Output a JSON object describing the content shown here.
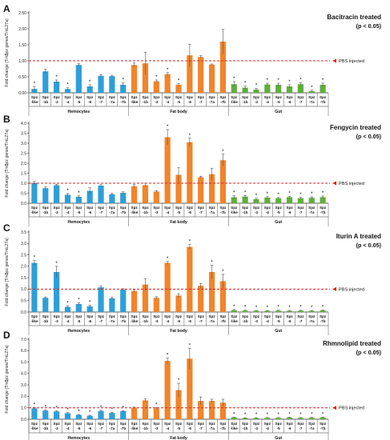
{
  "chart_data": [
    {
      "type": "bar",
      "panel_label": "A",
      "title": "Bacitracin treated",
      "subtitle": "(p < 0.05)",
      "ylabel": "Fold change (Tm$pz genes/TmL27a)",
      "ylim": [
        0,
        2.5
      ],
      "yticks": [
        "0.00",
        "0.50",
        "1.00",
        "1.50",
        "2.00",
        "2.50"
      ],
      "reference_label": "PBS injected",
      "reference_value": 1.0,
      "grid": false,
      "groups": [
        {
          "name": "Hemocytes",
          "color": "#2e9fd8",
          "categories": [
            "Spz -like",
            "Spz -1b",
            "Spz -3",
            "Spz -4",
            "Spz -5",
            "Spz -6",
            "Spz -7",
            "Spz -7a",
            "Spz -7b"
          ],
          "values": [
            0.12,
            0.67,
            0.35,
            0.12,
            0.87,
            0.2,
            0.53,
            0.52,
            0.25
          ],
          "errors": [
            0.08,
            0.07,
            0.05,
            0.04,
            0.04,
            0.05,
            0.04,
            0.03,
            0.06
          ],
          "significant": [
            true,
            false,
            true,
            true,
            false,
            true,
            false,
            false,
            true
          ]
        },
        {
          "name": "Fat body",
          "color": "#f2842a",
          "categories": [
            "Spz -like",
            "Spz -1b",
            "Spz -3",
            "Spz -4",
            "Spz -5",
            "Spz -6",
            "Spz -7",
            "Spz -7a",
            "Spz -7b"
          ],
          "values": [
            0.87,
            0.92,
            0.36,
            0.58,
            0.25,
            1.17,
            1.12,
            0.88,
            1.6
          ],
          "errors": [
            0.06,
            0.35,
            0.04,
            0.05,
            0.04,
            0.35,
            0.04,
            0.02,
            0.38
          ],
          "significant": [
            false,
            false,
            true,
            true,
            true,
            false,
            false,
            false,
            false
          ]
        },
        {
          "name": "Gut",
          "color": "#5fae3c",
          "categories": [
            "Spz -like",
            "Spz -1b",
            "Spz -3",
            "Spz -4",
            "Spz -5",
            "Spz -6",
            "Spz -7",
            "Spz -7a",
            "Spz -7b"
          ],
          "values": [
            0.27,
            0.16,
            0.1,
            0.26,
            0.25,
            0.2,
            0.27,
            0.05,
            0.25
          ],
          "errors": [
            0.08,
            0.05,
            0.04,
            0.04,
            0.05,
            0.05,
            0.04,
            0.03,
            0.05
          ],
          "significant": [
            true,
            true,
            true,
            true,
            true,
            true,
            true,
            true,
            true
          ]
        }
      ]
    },
    {
      "type": "bar",
      "panel_label": "B",
      "title": "Fengycin treated",
      "subtitle": "(p < 0.05)",
      "ylabel": "Fold change (Tm$pz genes/TmL27a)",
      "ylim": [
        0,
        4.0
      ],
      "yticks": [
        "0.0",
        "0.5",
        "1.0",
        "1.5",
        "2.0",
        "2.5",
        "3.0",
        "3.5",
        "4.0"
      ],
      "reference_label": "PBS injected",
      "reference_value": 1.0,
      "grid": false,
      "groups": [
        {
          "name": "Hemocytes",
          "color": "#2e9fd8",
          "categories": [
            "Spz -like",
            "Spz -1b",
            "Spz -3",
            "Spz -4",
            "Spz -5",
            "Spz -6",
            "Spz -7",
            "Spz -7a",
            "Spz -7b"
          ],
          "values": [
            1.02,
            0.75,
            0.9,
            0.42,
            0.32,
            0.62,
            0.88,
            0.45,
            0.52
          ],
          "errors": [
            0.07,
            0.06,
            0.05,
            0.06,
            0.05,
            0.15,
            0.05,
            0.04,
            0.05
          ],
          "significant": [
            false,
            false,
            false,
            true,
            true,
            false,
            false,
            false,
            false
          ]
        },
        {
          "name": "Fat body",
          "color": "#f2842a",
          "categories": [
            "Spz -like",
            "Spz -1b",
            "Spz -3",
            "Spz -4",
            "Spz -5",
            "Spz -6",
            "Spz -7",
            "Spz -7a",
            "Spz -7b"
          ],
          "values": [
            0.85,
            0.9,
            0.58,
            3.3,
            1.42,
            3.05,
            1.3,
            1.45,
            2.15
          ],
          "errors": [
            0.08,
            0.1,
            0.05,
            0.38,
            0.35,
            0.2,
            0.05,
            0.3,
            0.3
          ],
          "significant": [
            false,
            false,
            false,
            true,
            false,
            true,
            false,
            false,
            true
          ]
        },
        {
          "name": "Gut",
          "color": "#5fae3c",
          "categories": [
            "Spz -like",
            "Spz -1b",
            "Spz -3",
            "Spz -4",
            "Spz -5",
            "Spz -6",
            "Spz -7",
            "Spz -7a",
            "Spz -7b"
          ],
          "values": [
            0.3,
            0.33,
            0.2,
            0.28,
            0.25,
            0.3,
            0.25,
            0.27,
            0.3
          ],
          "errors": [
            0.08,
            0.06,
            0.05,
            0.05,
            0.04,
            0.05,
            0.04,
            0.05,
            0.06
          ],
          "significant": [
            true,
            true,
            true,
            true,
            true,
            true,
            true,
            true,
            true
          ]
        }
      ]
    },
    {
      "type": "bar",
      "panel_label": "C",
      "title": "Iturin A treated",
      "subtitle": "(p < 0.05)",
      "ylabel": "Fold change (Tm$pz genes/TmL27a)",
      "ylim": [
        0,
        3.5
      ],
      "yticks": [
        "0.0",
        "0.5",
        "1.0",
        "1.5",
        "2.0",
        "2.5",
        "3.0",
        "3.5"
      ],
      "reference_label": "PBS injected",
      "reference_value": 1.0,
      "grid": false,
      "groups": [
        {
          "name": "Hemocytes",
          "color": "#2e9fd8",
          "categories": [
            "Spz -like",
            "Spz -1b",
            "Spz -3",
            "Spz -4",
            "Spz -5",
            "Spz -6",
            "Spz -7",
            "Spz -7a",
            "Spz -7b"
          ],
          "values": [
            2.15,
            0.62,
            1.75,
            0.22,
            0.35,
            0.25,
            1.08,
            0.6,
            0.98
          ],
          "errors": [
            0.1,
            0.04,
            0.25,
            0.05,
            0.05,
            0.05,
            0.06,
            0.05,
            0.04
          ],
          "significant": [
            true,
            false,
            true,
            true,
            true,
            true,
            false,
            false,
            false
          ]
        },
        {
          "name": "Fat body",
          "color": "#f2842a",
          "categories": [
            "Spz -like",
            "Spz -1b",
            "Spz -3",
            "Spz -4",
            "Spz -5",
            "Spz -6",
            "Spz -7",
            "Spz -7a",
            "Spz -7b"
          ],
          "values": [
            0.92,
            1.2,
            0.62,
            2.15,
            0.72,
            2.85,
            1.15,
            1.75,
            1.35
          ],
          "errors": [
            0.06,
            0.25,
            0.05,
            0.06,
            0.08,
            0.1,
            0.1,
            0.3,
            0.3
          ],
          "significant": [
            false,
            false,
            false,
            true,
            false,
            true,
            false,
            true,
            true
          ]
        },
        {
          "name": "Gut",
          "color": "#5fae3c",
          "categories": [
            "Spz -like",
            "Spz -1b",
            "Spz -3",
            "Spz -4",
            "Spz -5",
            "Spz -6",
            "Spz -7",
            "Spz -7a",
            "Spz -7b"
          ],
          "values": [
            0.08,
            0.06,
            0.05,
            0.05,
            0.06,
            0.05,
            0.06,
            0.05,
            0.07
          ],
          "errors": [
            0.03,
            0.02,
            0.02,
            0.02,
            0.02,
            0.02,
            0.02,
            0.02,
            0.02
          ],
          "significant": [
            true,
            true,
            true,
            true,
            true,
            true,
            true,
            true,
            true
          ]
        }
      ]
    },
    {
      "type": "bar",
      "panel_label": "D",
      "title": "Rhmnolipid treated",
      "subtitle": "(p < 0.05)",
      "ylabel": "Fold change (Tm$pz genes/TmL27a)",
      "ylim": [
        0,
        7.0
      ],
      "yticks": [
        "0.0",
        "1.0",
        "2.0",
        "3.0",
        "4.0",
        "5.0",
        "6.0",
        "7.0"
      ],
      "reference_label": "PBS injected",
      "reference_value": 1.0,
      "grid": false,
      "groups": [
        {
          "name": "Hemocytes",
          "color": "#2e9fd8",
          "categories": [
            "Spz -like",
            "Spz -1b",
            "Spz -3",
            "Spz -4",
            "Spz -5",
            "Spz -6",
            "Spz -7",
            "Spz -7a",
            "Spz -7b"
          ],
          "values": [
            0.95,
            0.75,
            0.68,
            0.52,
            0.38,
            0.3,
            0.72,
            0.55,
            0.7
          ],
          "errors": [
            0.08,
            0.06,
            0.05,
            0.05,
            0.04,
            0.05,
            0.06,
            0.05,
            0.05
          ],
          "significant": [
            true,
            true,
            true,
            true,
            true,
            true,
            true,
            true,
            true
          ]
        },
        {
          "name": "Fat body",
          "color": "#f2842a",
          "categories": [
            "Spz -like",
            "Spz -1b",
            "Spz -3",
            "Spz -4",
            "Spz -5",
            "Spz -6",
            "Spz -7",
            "Spz -7a",
            "Spz -7b"
          ],
          "values": [
            1.0,
            1.65,
            0.95,
            5.1,
            2.55,
            5.3,
            1.6,
            1.6,
            1.45
          ],
          "errors": [
            0.06,
            0.12,
            0.08,
            0.25,
            0.6,
            0.9,
            0.35,
            0.15,
            0.3
          ],
          "significant": [
            false,
            false,
            true,
            true,
            true,
            true,
            false,
            false,
            false
          ]
        },
        {
          "name": "Gut",
          "color": "#5fae3c",
          "categories": [
            "Spz -like",
            "Spz -1b",
            "Spz -3",
            "Spz -4",
            "Spz -5",
            "Spz -6",
            "Spz -7",
            "Spz -7a",
            "Spz -7b"
          ],
          "values": [
            0.15,
            0.1,
            0.1,
            0.12,
            0.12,
            0.15,
            0.12,
            0.13,
            0.15
          ],
          "errors": [
            0.03,
            0.03,
            0.03,
            0.03,
            0.03,
            0.03,
            0.03,
            0.03,
            0.03
          ],
          "significant": [
            true,
            true,
            true,
            true,
            true,
            true,
            true,
            true,
            true
          ]
        }
      ]
    }
  ]
}
